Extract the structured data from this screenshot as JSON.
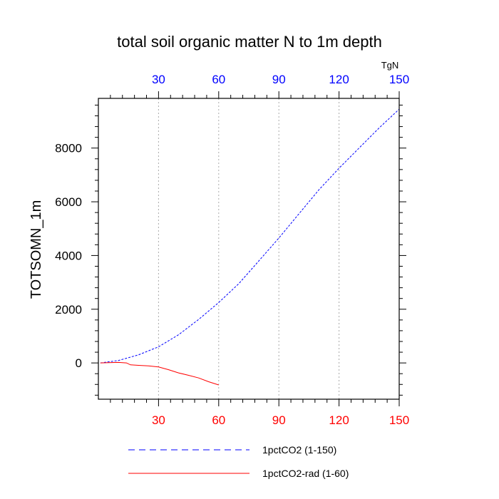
{
  "chart_data": {
    "type": "line",
    "title": "total soil organic matter N to 1m depth",
    "ylabel": "TOTSOMN_1m",
    "units_label": "TgN",
    "xlim": [
      0,
      150
    ],
    "ylim": [
      -1350,
      9850
    ],
    "x_ticks": [
      30,
      60,
      90,
      120,
      150
    ],
    "x_tick_labels": [
      "30",
      "60",
      "90",
      "120",
      "150"
    ],
    "y_ticks": [
      0,
      2000,
      4000,
      6000,
      8000
    ],
    "y_tick_labels": [
      "0",
      "2000",
      "4000",
      "6000",
      "8000"
    ],
    "y_minor_step": 400,
    "x_minor_step": 6,
    "grid": "vertical dotted at major x ticks",
    "top_axis_color": "#0000ff",
    "bottom_axis_color": "#ff0000",
    "series": [
      {
        "name": "1pctCO2 (1-150)",
        "color": "#0000ff",
        "dash": "dashed",
        "x": [
          1,
          10,
          20,
          30,
          40,
          50,
          60,
          70,
          80,
          90,
          100,
          110,
          120,
          130,
          140,
          150
        ],
        "y": [
          0,
          90,
          300,
          600,
          1050,
          1620,
          2250,
          2950,
          3800,
          4650,
          5550,
          6450,
          7250,
          8000,
          8750,
          9450
        ]
      },
      {
        "name": "1pctCO2-rad (1-60)",
        "color": "#ff0000",
        "dash": "solid",
        "x": [
          1,
          5,
          10,
          14,
          16,
          20,
          25,
          30,
          35,
          40,
          45,
          50,
          55,
          60
        ],
        "y": [
          0,
          10,
          20,
          0,
          -70,
          -90,
          -110,
          -150,
          -250,
          -370,
          -460,
          -560,
          -700,
          -820
        ]
      }
    ]
  }
}
